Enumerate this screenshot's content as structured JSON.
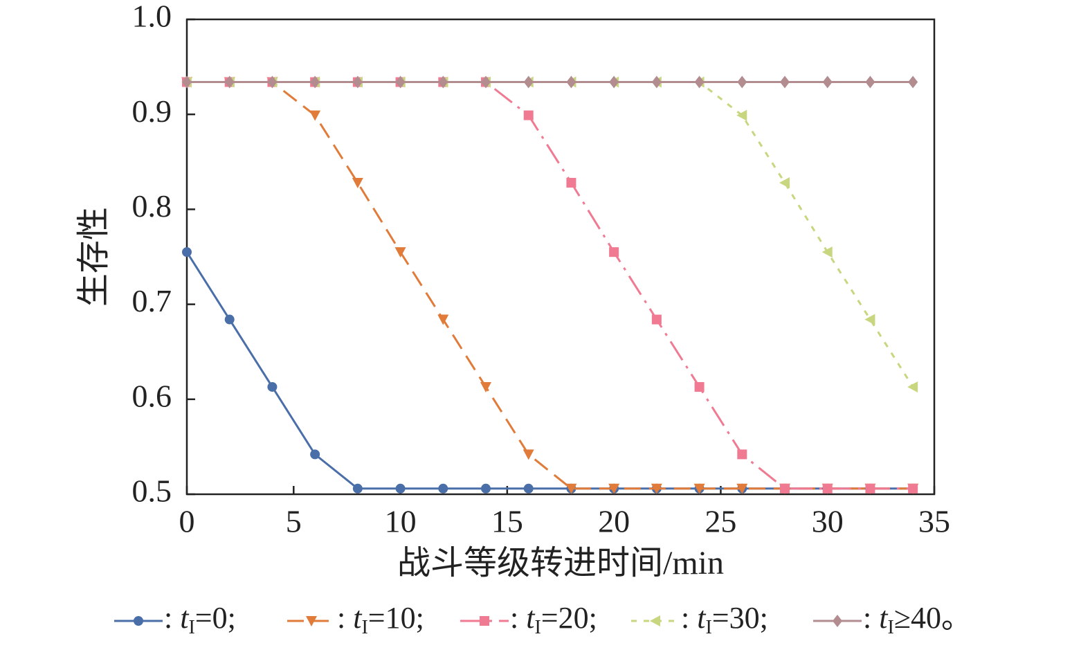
{
  "chart_data": {
    "type": "line",
    "x_label": "战斗等级转进时间/min",
    "y_label": "生存性",
    "x": [
      0,
      2,
      4,
      6,
      8,
      10,
      12,
      14,
      16,
      18,
      20,
      22,
      24,
      26,
      28,
      30,
      32,
      34
    ],
    "series": [
      {
        "name": ": tI=0;",
        "color": "#4a6fa8",
        "marker": "circle",
        "dash": "solid",
        "values": [
          0.755,
          0.684,
          0.613,
          0.542,
          0.506,
          0.506,
          0.506,
          0.506,
          0.506,
          0.506,
          0.506,
          0.506,
          0.506,
          0.506,
          0.506,
          0.506,
          0.506,
          0.506
        ]
      },
      {
        "name": ": tI=10;",
        "color": "#e07b39",
        "marker": "triangle-down",
        "dash": "dash",
        "values": [
          0.934,
          0.934,
          0.934,
          0.899,
          0.828,
          0.755,
          0.684,
          0.613,
          0.542,
          0.506,
          0.506,
          0.506,
          0.506,
          0.506,
          0.506,
          0.506,
          0.506,
          0.506
        ]
      },
      {
        "name": ": tI=20;",
        "color": "#f07a92",
        "marker": "square",
        "dash": "dashdot",
        "values": [
          0.934,
          0.934,
          0.934,
          0.934,
          0.934,
          0.934,
          0.934,
          0.934,
          0.899,
          0.828,
          0.755,
          0.684,
          0.613,
          0.542,
          0.506,
          0.506,
          0.506,
          0.506
        ]
      },
      {
        "name": ": tI=30;",
        "color": "#c8d67f",
        "marker": "triangle-left",
        "dash": "dot",
        "values": [
          0.934,
          0.934,
          0.934,
          0.934,
          0.934,
          0.934,
          0.934,
          0.934,
          0.934,
          0.934,
          0.934,
          0.934,
          0.934,
          0.899,
          0.828,
          0.755,
          0.684,
          0.613
        ]
      },
      {
        "name": ": tI≥40。",
        "color": "#b38c90",
        "marker": "diamond",
        "dash": "solid",
        "values": [
          0.934,
          0.934,
          0.934,
          0.934,
          0.934,
          0.934,
          0.934,
          0.934,
          0.934,
          0.934,
          0.934,
          0.934,
          0.934,
          0.934,
          0.934,
          0.934,
          0.934,
          0.934
        ]
      }
    ],
    "xlim": [
      0,
      35
    ],
    "xticks": [
      0,
      5,
      10,
      15,
      20,
      25,
      30,
      35
    ],
    "ylim": [
      0.5,
      1.0
    ],
    "yticks": [
      0.5,
      0.6,
      0.7,
      0.8,
      0.9,
      {
        "value": 1.0,
        "label": "1.0"
      }
    ],
    "legend": "bottom"
  }
}
